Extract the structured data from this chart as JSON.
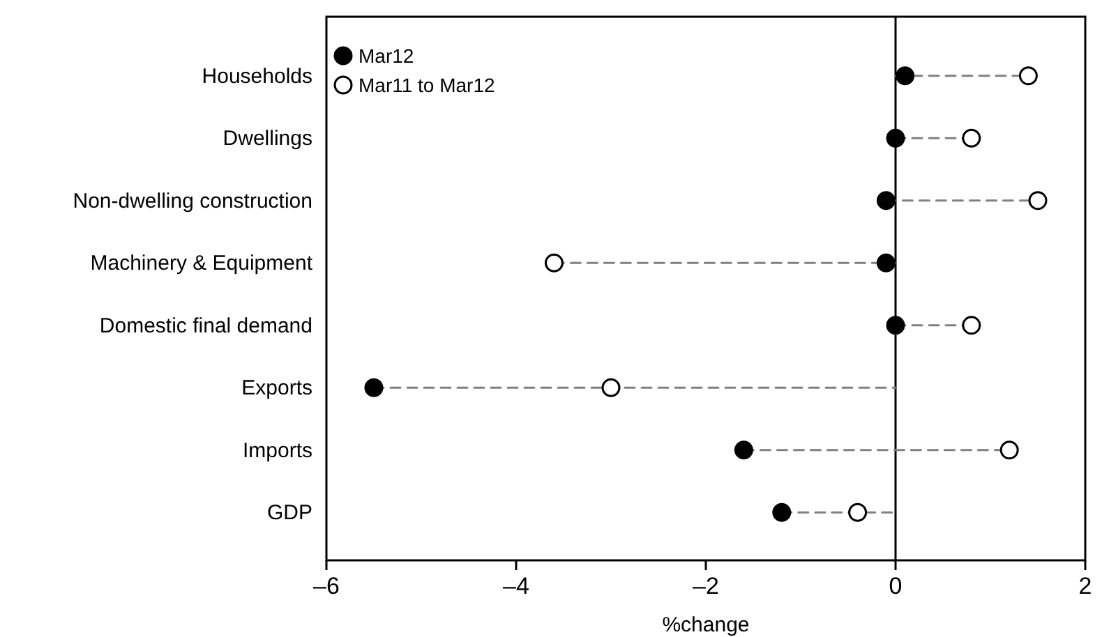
{
  "chart_data": {
    "type": "scatter",
    "orientation": "horizontal",
    "xlabel": "%change",
    "categories": [
      "Households",
      "Dwellings",
      "Non-dwelling construction",
      "Machinery & Equipment",
      "Domestic final demand",
      "Exports",
      "Imports",
      "GDP"
    ],
    "series": [
      {
        "name": "Mar12",
        "color": "#000000",
        "values": [
          0.1,
          0,
          -0.1,
          -0.1,
          0,
          -5.5,
          -1.6,
          -1.2
        ]
      },
      {
        "name": "Mar11 to Mar12",
        "color": "#ffffff",
        "values": [
          1.4,
          0.8,
          1.5,
          -3.6,
          0.8,
          -3.0,
          1.2,
          -0.4
        ]
      }
    ],
    "xlim": [
      -6,
      2
    ],
    "xticks": [
      {
        "value": -6,
        "label": "–6"
      },
      {
        "value": -4,
        "label": "–4"
      },
      {
        "value": -2,
        "label": "–2"
      },
      0,
      2
    ],
    "ref_lines": [
      {
        "axis": "x",
        "value": 0,
        "color": "#000000"
      }
    ],
    "marker": "circle",
    "line_style": "dashed",
    "legend": "top left",
    "grid": false
  }
}
